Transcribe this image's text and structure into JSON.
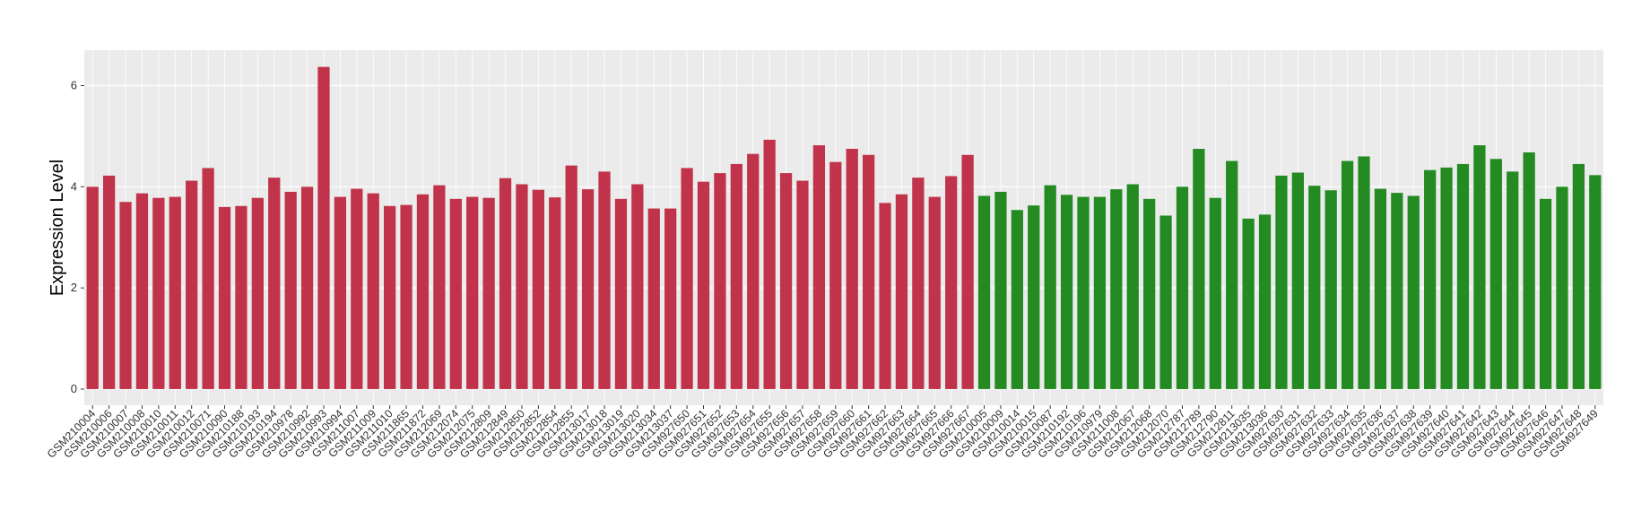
{
  "chart_data": {
    "type": "bar",
    "y_label": "Expression Level",
    "categories": [
      "GSM210004",
      "GSM210006",
      "GSM210007",
      "GSM210008",
      "GSM210010",
      "GSM210011",
      "GSM210012",
      "GSM210071",
      "GSM210090",
      "GSM210188",
      "GSM210193",
      "GSM210194",
      "GSM210978",
      "GSM210992",
      "GSM210993",
      "GSM210994",
      "GSM211007",
      "GSM211009",
      "GSM211010",
      "GSM211865",
      "GSM211872",
      "GSM212069",
      "GSM212074",
      "GSM212075",
      "GSM212809",
      "GSM212849",
      "GSM212850",
      "GSM212852",
      "GSM212854",
      "GSM212855",
      "GSM213017",
      "GSM213018",
      "GSM213019",
      "GSM213020",
      "GSM213034",
      "GSM213037",
      "GSM927650",
      "GSM927651",
      "GSM927652",
      "GSM927653",
      "GSM927654",
      "GSM927655",
      "GSM927656",
      "GSM927657",
      "GSM927658",
      "GSM927659",
      "GSM927660",
      "GSM927661",
      "GSM927662",
      "GSM927663",
      "GSM927664",
      "GSM927665",
      "GSM927666",
      "GSM927667",
      "GSM210005",
      "GSM210009",
      "GSM210014",
      "GSM210015",
      "GSM210087",
      "GSM210192",
      "GSM210196",
      "GSM210979",
      "GSM211008",
      "GSM212067",
      "GSM212068",
      "GSM212070",
      "GSM212787",
      "GSM212789",
      "GSM212790",
      "GSM212811",
      "GSM213035",
      "GSM213036",
      "GSM927630",
      "GSM927631",
      "GSM927632",
      "GSM927633",
      "GSM927634",
      "GSM927635",
      "GSM927636",
      "GSM927637",
      "GSM927638",
      "GSM927639",
      "GSM927640",
      "GSM927641",
      "GSM927642",
      "GSM927643",
      "GSM927644",
      "GSM927645",
      "GSM927646",
      "GSM927647",
      "GSM927648",
      "GSM927649"
    ],
    "values": [
      4.0,
      4.22,
      3.7,
      3.87,
      3.78,
      3.8,
      4.12,
      4.37,
      3.6,
      3.62,
      3.78,
      4.18,
      3.9,
      4.0,
      6.37,
      3.8,
      3.96,
      3.87,
      3.62,
      3.64,
      3.85,
      4.03,
      3.76,
      3.8,
      3.78,
      4.17,
      4.05,
      3.94,
      3.79,
      4.42,
      3.95,
      4.3,
      3.76,
      4.05,
      3.57,
      3.57,
      4.37,
      4.1,
      4.27,
      4.45,
      4.65,
      4.93,
      4.27,
      4.12,
      4.82,
      4.49,
      4.75,
      4.63,
      3.68,
      3.85,
      4.18,
      3.8,
      4.21,
      4.63,
      3.82,
      3.9,
      3.54,
      3.63,
      4.03,
      3.84,
      3.8,
      3.8,
      3.95,
      4.05,
      3.76,
      3.43,
      4.0,
      4.75,
      3.78,
      4.51,
      3.37,
      3.45,
      4.22,
      4.28,
      4.02,
      3.93,
      4.51,
      4.6,
      3.96,
      3.88,
      3.82,
      4.33,
      4.38,
      4.45,
      4.82,
      4.55,
      4.3,
      4.68,
      3.76,
      4.0,
      4.45,
      4.23
    ],
    "colors": [
      "#c0334a",
      "#c0334a",
      "#c0334a",
      "#c0334a",
      "#c0334a",
      "#c0334a",
      "#c0334a",
      "#c0334a",
      "#c0334a",
      "#c0334a",
      "#c0334a",
      "#c0334a",
      "#c0334a",
      "#c0334a",
      "#c0334a",
      "#c0334a",
      "#c0334a",
      "#c0334a",
      "#c0334a",
      "#c0334a",
      "#c0334a",
      "#c0334a",
      "#c0334a",
      "#c0334a",
      "#c0334a",
      "#c0334a",
      "#c0334a",
      "#c0334a",
      "#c0334a",
      "#c0334a",
      "#c0334a",
      "#c0334a",
      "#c0334a",
      "#c0334a",
      "#c0334a",
      "#c0334a",
      "#c0334a",
      "#c0334a",
      "#c0334a",
      "#c0334a",
      "#c0334a",
      "#c0334a",
      "#c0334a",
      "#c0334a",
      "#c0334a",
      "#c0334a",
      "#c0334a",
      "#c0334a",
      "#c0334a",
      "#c0334a",
      "#c0334a",
      "#c0334a",
      "#c0334a",
      "#c0334a",
      "#238b22",
      "#238b22",
      "#238b22",
      "#238b22",
      "#238b22",
      "#238b22",
      "#238b22",
      "#238b22",
      "#238b22",
      "#238b22",
      "#238b22",
      "#238b22",
      "#238b22",
      "#238b22",
      "#238b22",
      "#238b22",
      "#238b22",
      "#238b22",
      "#238b22",
      "#238b22",
      "#238b22",
      "#238b22",
      "#238b22",
      "#238b22",
      "#238b22",
      "#238b22",
      "#238b22",
      "#238b22",
      "#238b22",
      "#238b22",
      "#238b22",
      "#238b22",
      "#238b22",
      "#238b22",
      "#238b22",
      "#238b22",
      "#238b22",
      "#238b22"
    ],
    "ylim": [
      -0.32,
      6.7
    ],
    "yticks": [
      0,
      2,
      4,
      6
    ],
    "grid": true
  }
}
